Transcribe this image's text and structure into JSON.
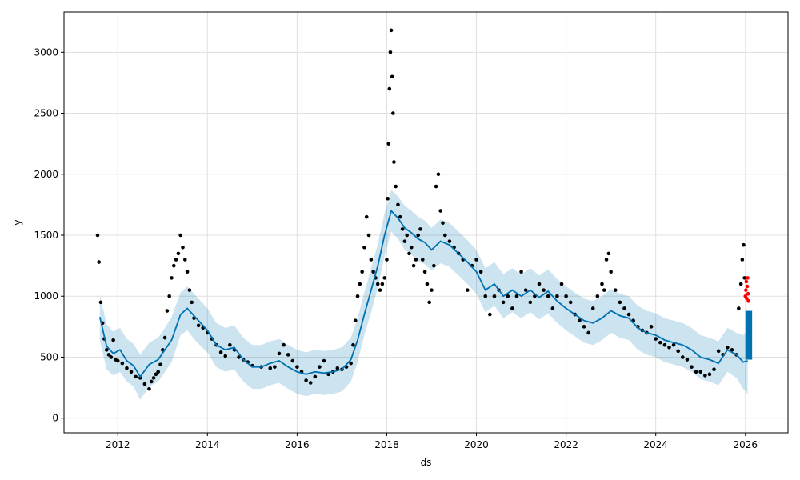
{
  "chart_data": {
    "type": "line",
    "title": "",
    "xlabel": "ds",
    "ylabel": "y",
    "xlim": [
      2010.8,
      2026.95
    ],
    "ylim": [
      -120,
      3330
    ],
    "grid": true,
    "x_ticks": [
      2012,
      2014,
      2016,
      2018,
      2020,
      2022,
      2024,
      2026
    ],
    "x_tick_labels": [
      "2012",
      "2014",
      "2016",
      "2018",
      "2020",
      "2022",
      "2024",
      "2026"
    ],
    "y_ticks": [
      0,
      500,
      1000,
      1500,
      2000,
      2500,
      3000
    ],
    "y_tick_labels": [
      "0",
      "500",
      "1000",
      "1500",
      "2000",
      "2500",
      "3000"
    ],
    "colors": {
      "forecast_line": "#0072b2",
      "uncertainty_band": "#0072b2",
      "observed_points": "#000000",
      "recent_points": "#ff0000",
      "grid": "#e0e0e0"
    },
    "series": [
      {
        "kind": "forecast",
        "x": [
          2011.6,
          2011.75,
          2011.9,
          2012.05,
          2012.2,
          2012.35,
          2012.5,
          2012.7,
          2012.9,
          2013.05,
          2013.2,
          2013.4,
          2013.55,
          2013.7,
          2013.85,
          2014.0,
          2014.2,
          2014.4,
          2014.6,
          2014.8,
          2015.0,
          2015.2,
          2015.4,
          2015.6,
          2015.8,
          2016.0,
          2016.2,
          2016.4,
          2016.6,
          2016.8,
          2017.0,
          2017.2,
          2017.35,
          2017.5,
          2017.65,
          2017.8,
          2017.95,
          2018.1,
          2018.25,
          2018.4,
          2018.55,
          2018.7,
          2018.85,
          2019.0,
          2019.2,
          2019.4,
          2019.6,
          2019.8,
          2020.0,
          2020.2,
          2020.4,
          2020.6,
          2020.8,
          2021.0,
          2021.2,
          2021.4,
          2021.6,
          2021.8,
          2022.0,
          2022.2,
          2022.4,
          2022.6,
          2022.8,
          2023.0,
          2023.2,
          2023.4,
          2023.6,
          2023.8,
          2024.0,
          2024.2,
          2024.4,
          2024.6,
          2024.8,
          2025.0,
          2025.2,
          2025.4,
          2025.6,
          2025.8,
          2025.95,
          2026.05
        ],
        "yhat": [
          830,
          590,
          530,
          560,
          470,
          430,
          340,
          440,
          480,
          560,
          640,
          850,
          900,
          840,
          780,
          720,
          600,
          560,
          580,
          480,
          420,
          420,
          450,
          470,
          420,
          380,
          360,
          380,
          370,
          380,
          400,
          480,
          640,
          850,
          1050,
          1250,
          1500,
          1700,
          1640,
          1560,
          1520,
          1470,
          1440,
          1380,
          1450,
          1420,
          1350,
          1280,
          1200,
          1050,
          1100,
          1000,
          1050,
          1000,
          1050,
          990,
          1040,
          960,
          900,
          850,
          800,
          780,
          820,
          880,
          840,
          820,
          740,
          700,
          680,
          640,
          620,
          600,
          560,
          500,
          480,
          450,
          560,
          520,
          460,
          470
        ],
        "lower": [
          640,
          400,
          350,
          380,
          300,
          260,
          150,
          260,
          300,
          380,
          460,
          680,
          720,
          650,
          590,
          540,
          420,
          380,
          400,
          300,
          240,
          240,
          270,
          290,
          240,
          200,
          180,
          200,
          190,
          200,
          220,
          300,
          460,
          680,
          870,
          1070,
          1330,
          1530,
          1470,
          1380,
          1340,
          1290,
          1260,
          1210,
          1270,
          1240,
          1170,
          1100,
          1020,
          870,
          920,
          820,
          870,
          820,
          870,
          810,
          860,
          780,
          720,
          670,
          620,
          600,
          640,
          700,
          660,
          640,
          560,
          520,
          500,
          460,
          440,
          420,
          380,
          320,
          300,
          270,
          380,
          330,
          240,
          200
        ],
        "upper": [
          1010,
          770,
          710,
          740,
          650,
          610,
          520,
          620,
          660,
          740,
          830,
          1030,
          1080,
          1020,
          960,
          900,
          780,
          740,
          760,
          660,
          600,
          600,
          630,
          650,
          600,
          560,
          540,
          560,
          550,
          560,
          580,
          660,
          820,
          1030,
          1230,
          1430,
          1680,
          1870,
          1820,
          1740,
          1700,
          1650,
          1620,
          1560,
          1630,
          1600,
          1530,
          1460,
          1380,
          1230,
          1280,
          1180,
          1230,
          1180,
          1230,
          1170,
          1220,
          1140,
          1080,
          1030,
          980,
          960,
          1000,
          1060,
          1020,
          1000,
          920,
          880,
          860,
          820,
          800,
          780,
          740,
          680,
          660,
          630,
          740,
          700,
          680,
          720
        ]
      },
      {
        "kind": "observed",
        "x": [
          2011.55,
          2011.58,
          2011.62,
          2011.66,
          2011.7,
          2011.75,
          2011.8,
          2011.85,
          2011.9,
          2011.95,
          2012.0,
          2012.1,
          2012.2,
          2012.3,
          2012.4,
          2012.5,
          2012.6,
          2012.7,
          2012.75,
          2012.8,
          2012.85,
          2012.9,
          2012.95,
          2013.0,
          2013.05,
          2013.1,
          2013.15,
          2013.2,
          2013.25,
          2013.3,
          2013.35,
          2013.4,
          2013.45,
          2013.5,
          2013.55,
          2013.6,
          2013.65,
          2013.7,
          2013.8,
          2013.9,
          2014.0,
          2014.1,
          2014.2,
          2014.3,
          2014.4,
          2014.5,
          2014.6,
          2014.7,
          2014.8,
          2014.9,
          2015.0,
          2015.2,
          2015.4,
          2015.5,
          2015.6,
          2015.7,
          2015.8,
          2015.9,
          2016.0,
          2016.1,
          2016.2,
          2016.3,
          2016.4,
          2016.5,
          2016.6,
          2016.7,
          2016.8,
          2016.9,
          2017.0,
          2017.1,
          2017.2,
          2017.25,
          2017.3,
          2017.35,
          2017.4,
          2017.45,
          2017.5,
          2017.55,
          2017.6,
          2017.65,
          2017.7,
          2017.75,
          2017.8,
          2017.85,
          2017.9,
          2017.95,
          2018.0,
          2018.02,
          2018.04,
          2018.06,
          2018.08,
          2018.1,
          2018.12,
          2018.14,
          2018.16,
          2018.2,
          2018.25,
          2018.3,
          2018.35,
          2018.4,
          2018.45,
          2018.5,
          2018.55,
          2018.6,
          2018.65,
          2018.7,
          2018.75,
          2018.8,
          2018.85,
          2018.9,
          2018.95,
          2019.0,
          2019.05,
          2019.1,
          2019.15,
          2019.2,
          2019.25,
          2019.3,
          2019.4,
          2019.5,
          2019.6,
          2019.7,
          2019.8,
          2019.9,
          2020.0,
          2020.1,
          2020.2,
          2020.3,
          2020.4,
          2020.5,
          2020.6,
          2020.7,
          2020.8,
          2020.9,
          2021.0,
          2021.1,
          2021.2,
          2021.3,
          2021.4,
          2021.5,
          2021.6,
          2021.7,
          2021.8,
          2021.9,
          2022.0,
          2022.1,
          2022.2,
          2022.3,
          2022.4,
          2022.5,
          2022.6,
          2022.7,
          2022.8,
          2022.85,
          2022.9,
          2022.95,
          2023.0,
          2023.1,
          2023.2,
          2023.3,
          2023.4,
          2023.5,
          2023.6,
          2023.7,
          2023.8,
          2023.9,
          2024.0,
          2024.1,
          2024.2,
          2024.3,
          2024.4,
          2024.5,
          2024.6,
          2024.7,
          2024.8,
          2024.9,
          2025.0,
          2025.1,
          2025.2,
          2025.3,
          2025.4,
          2025.5,
          2025.6,
          2025.7,
          2025.8,
          2025.85,
          2025.9,
          2025.93,
          2025.96,
          2025.98
        ],
        "y": [
          1500,
          1280,
          950,
          780,
          650,
          560,
          520,
          500,
          640,
          480,
          470,
          450,
          410,
          380,
          340,
          330,
          280,
          240,
          300,
          330,
          360,
          380,
          440,
          560,
          660,
          880,
          1000,
          1150,
          1250,
          1300,
          1350,
          1500,
          1400,
          1300,
          1200,
          1050,
          950,
          820,
          760,
          740,
          700,
          650,
          600,
          540,
          510,
          600,
          560,
          500,
          480,
          460,
          430,
          420,
          410,
          420,
          530,
          600,
          520,
          470,
          420,
          380,
          310,
          290,
          340,
          420,
          470,
          360,
          380,
          410,
          400,
          420,
          450,
          600,
          800,
          1000,
          1100,
          1200,
          1400,
          1650,
          1500,
          1300,
          1200,
          1150,
          1100,
          1050,
          1100,
          1150,
          1300,
          1800,
          2250,
          2700,
          3000,
          3180,
          2800,
          2500,
          2100,
          1900,
          1750,
          1650,
          1550,
          1450,
          1500,
          1350,
          1400,
          1250,
          1300,
          1500,
          1550,
          1300,
          1200,
          1100,
          950,
          1050,
          1250,
          1900,
          2000,
          1700,
          1600,
          1500,
          1450,
          1400,
          1350,
          1300,
          1050,
          1250,
          1300,
          1200,
          1000,
          850,
          1000,
          1050,
          950,
          1000,
          900,
          1000,
          1200,
          1050,
          950,
          1000,
          1100,
          1050,
          1000,
          900,
          1000,
          1100,
          1000,
          950,
          850,
          800,
          750,
          700,
          900,
          1000,
          1100,
          1050,
          1300,
          1350,
          1200,
          1050,
          950,
          900,
          850,
          800,
          750,
          720,
          700,
          750,
          650,
          620,
          600,
          580,
          600,
          550,
          500,
          480,
          420,
          380,
          380,
          350,
          360,
          400,
          550,
          520,
          580,
          560,
          520,
          900,
          1100,
          1300,
          1420,
          1150
        ]
      },
      {
        "kind": "recent",
        "x": [
          2026.0,
          2026.01,
          2026.02,
          2026.03,
          2026.04,
          2026.05,
          2026.06,
          2026.07
        ],
        "y": [
          1000,
          1050,
          1120,
          980,
          1080,
          1150,
          1020,
          960
        ]
      }
    ]
  }
}
